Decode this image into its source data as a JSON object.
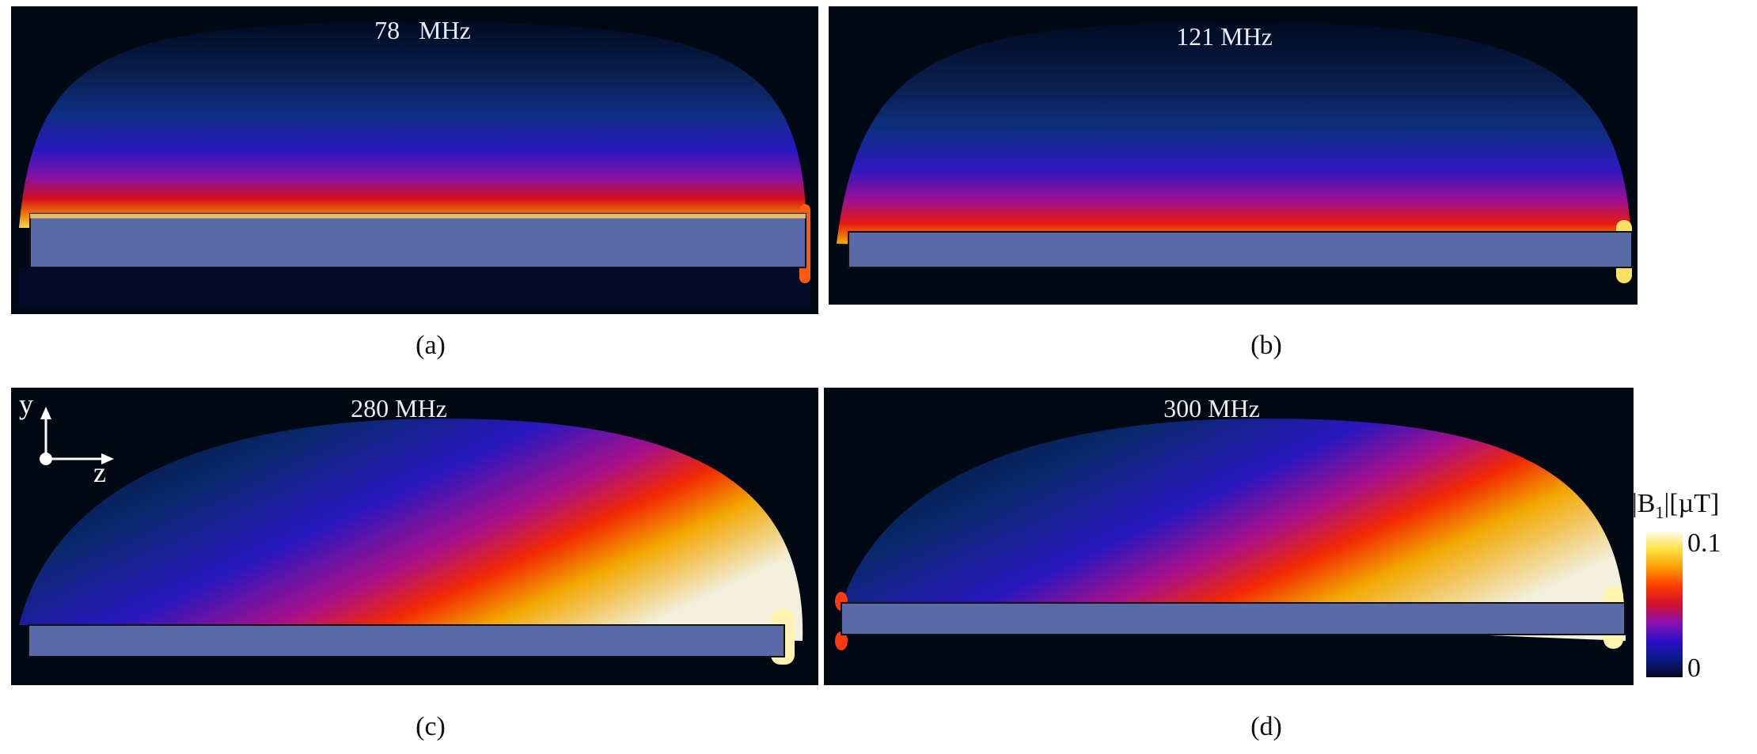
{
  "panels": [
    {
      "id": "a",
      "frequency": "78   MHz",
      "caption": "(a)"
    },
    {
      "id": "b",
      "frequency": "121 MHz",
      "caption": "(b)"
    },
    {
      "id": "c",
      "frequency": "280 MHz",
      "caption": "(c)"
    },
    {
      "id": "d",
      "frequency": "300 MHz",
      "caption": "(d)"
    }
  ],
  "axes": {
    "y_label": "y",
    "z_label": "z"
  },
  "colorbar": {
    "title": "|B1|[µT]",
    "title_main": "|B",
    "title_sub": "1",
    "title_rest": "|[µT]",
    "max_label": "0.1",
    "min_label": "0",
    "colors": [
      "#000a22",
      "#0a1a8a",
      "#2a10c8",
      "#8a10b0",
      "#d01030",
      "#ff3a00",
      "#ff9a00",
      "#ffe040",
      "#fffbe6"
    ]
  }
}
